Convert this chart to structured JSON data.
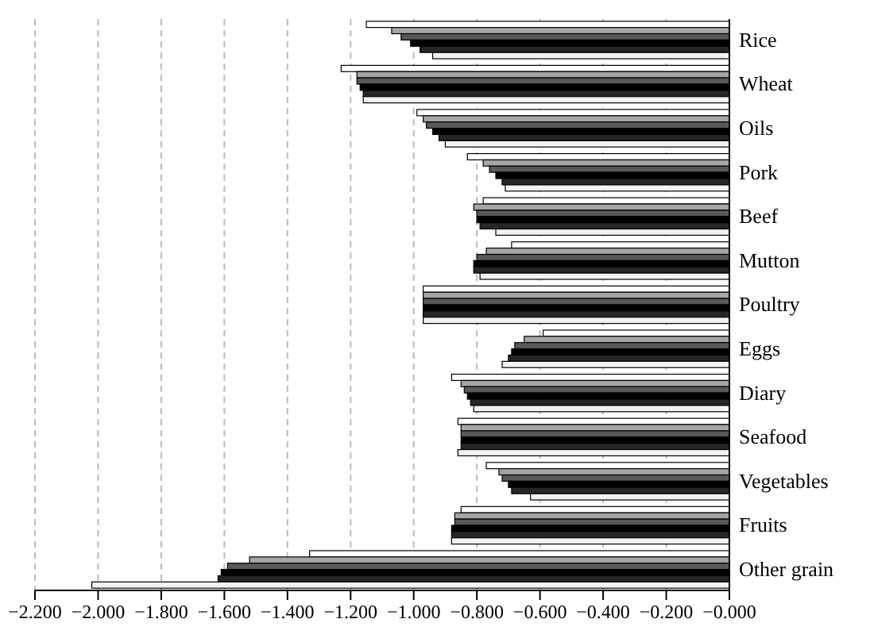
{
  "chart_data": {
    "type": "bar",
    "orientation": "horizontal",
    "categories": [
      "Rice",
      "Wheat",
      "Oils",
      "Pork",
      "Beef",
      "Mutton",
      "Poultry",
      "Eggs",
      "Diary",
      "Seafood",
      "Vegetables",
      "Fruits",
      "Other grain"
    ],
    "series": [
      {
        "color": "#ffffff",
        "values": [
          -1.15,
          -1.23,
          -0.99,
          -0.83,
          -0.78,
          -0.69,
          -0.97,
          -0.59,
          -0.88,
          -0.86,
          -0.77,
          -0.85,
          -1.33
        ]
      },
      {
        "color": "#a6a6a6",
        "values": [
          -1.07,
          -1.18,
          -0.97,
          -0.78,
          -0.81,
          -0.77,
          -0.97,
          -0.65,
          -0.85,
          -0.85,
          -0.73,
          -0.87,
          -1.52
        ]
      },
      {
        "color": "#595959",
        "values": [
          -1.04,
          -1.18,
          -0.96,
          -0.76,
          -0.8,
          -0.8,
          -0.97,
          -0.68,
          -0.84,
          -0.85,
          -0.72,
          -0.87,
          -1.59
        ]
      },
      {
        "color": "#000000",
        "values": [
          -1.01,
          -1.17,
          -0.94,
          -0.74,
          -0.8,
          -0.81,
          -0.97,
          -0.69,
          -0.83,
          -0.85,
          -0.7,
          -0.88,
          -1.61
        ]
      },
      {
        "color": "#262626",
        "values": [
          -0.98,
          -1.16,
          -0.92,
          -0.72,
          -0.79,
          -0.81,
          -0.97,
          -0.7,
          -0.82,
          -0.85,
          -0.69,
          -0.88,
          -1.62
        ]
      },
      {
        "color": "#f2f2f2",
        "values": [
          -0.94,
          -1.16,
          -0.9,
          -0.71,
          -0.74,
          -0.79,
          -0.97,
          -0.72,
          -0.81,
          -0.86,
          -0.63,
          -0.88,
          -2.02
        ]
      }
    ],
    "xlim": [
      -2.2,
      0
    ],
    "xticks": [
      {
        "value": -2.2,
        "label": "−2.200"
      },
      {
        "value": -2.0,
        "label": "−2.000"
      },
      {
        "value": -1.8,
        "label": "−1.800"
      },
      {
        "value": -1.6,
        "label": "−1.600"
      },
      {
        "value": -1.4,
        "label": "−1.400"
      },
      {
        "value": -1.2,
        "label": "−1.200"
      },
      {
        "value": -1.0,
        "label": "−1.000"
      },
      {
        "value": -0.8,
        "label": "−0.800"
      },
      {
        "value": -0.6,
        "label": "−0.600"
      },
      {
        "value": -0.4,
        "label": "−0.400"
      },
      {
        "value": -0.2,
        "label": "−0.200"
      },
      {
        "value": 0,
        "label": "−0.000"
      }
    ],
    "grid": "x"
  }
}
